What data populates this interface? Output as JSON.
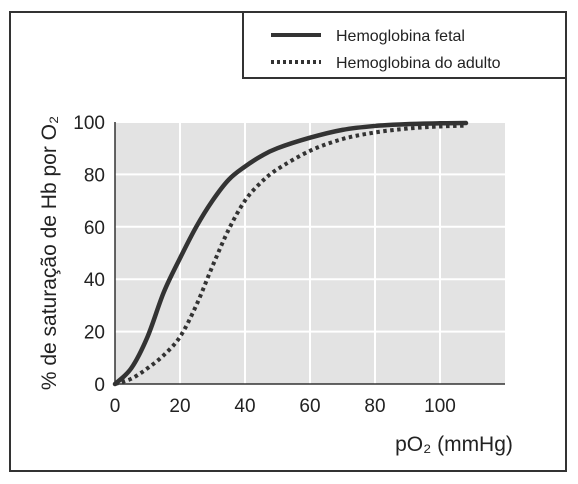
{
  "chart_data": {
    "type": "line",
    "xlabel": "pO₂ (mmHg)",
    "ylabel": "% de saturação de Hb por O₂",
    "xlim": [
      0,
      120
    ],
    "ylim": [
      0,
      100
    ],
    "x_ticks": [
      0,
      20,
      40,
      60,
      80,
      100
    ],
    "y_ticks": [
      0,
      20,
      40,
      60,
      80,
      100
    ],
    "grid": true,
    "legend_position": "top-right",
    "series": [
      {
        "name": "Hemoglobina fetal",
        "style": "solid",
        "color": "#333333",
        "x": [
          0,
          5,
          10,
          15,
          20,
          25,
          30,
          35,
          40,
          45,
          50,
          60,
          70,
          80,
          90,
          100,
          108
        ],
        "y": [
          0,
          6,
          18,
          35,
          48,
          60,
          70,
          78,
          83,
          87,
          90,
          94,
          97,
          98.5,
          99.2,
          99.5,
          99.6
        ]
      },
      {
        "name": "Hemoglobina do adulto",
        "style": "dotted",
        "color": "#333333",
        "x": [
          0,
          5,
          10,
          15,
          20,
          25,
          30,
          35,
          40,
          45,
          50,
          60,
          70,
          80,
          90,
          100,
          108
        ],
        "y": [
          0,
          2,
          6,
          11,
          18,
          30,
          45,
          59,
          70,
          77,
          82,
          89,
          93.5,
          96,
          97.5,
          98.3,
          98.6
        ]
      }
    ]
  }
}
